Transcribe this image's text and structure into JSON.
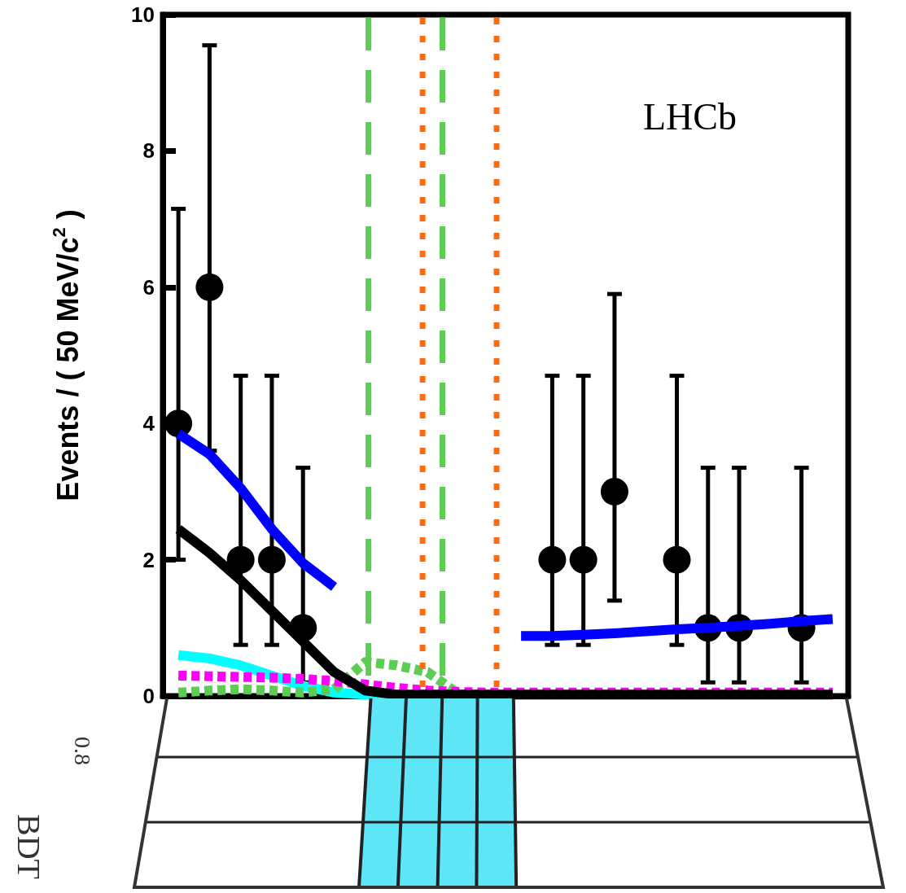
{
  "chart_data": {
    "type": "scatter",
    "ylabel": "Events / ( 50 MeV/c$^{2}$ )",
    "annotations": [
      "LHCb",
      "BDT",
      "0.8"
    ],
    "categories": [
      null,
      null,
      null,
      null,
      null,
      null,
      null,
      null,
      null,
      null,
      null,
      null,
      null,
      null,
      null,
      null,
      null,
      null,
      null,
      null,
      null,
      null
    ],
    "ylim": [
      0,
      10
    ],
    "yticks": [
      0,
      2,
      4,
      6,
      8,
      10
    ],
    "tick_labels": "y",
    "grid": false,
    "series": [
      {
        "type": "line",
        "color": "#00ffff",
        "line_style": "solid",
        "marker": "none",
        "values": [
          0.6,
          0.55,
          0.45,
          0.3,
          0.15,
          0.05,
          0.02,
          0.02,
          null,
          null,
          null,
          null,
          null,
          null,
          null,
          null,
          null,
          null,
          null,
          null,
          null,
          null
        ]
      },
      {
        "type": "line",
        "color": "#5ccc52",
        "line_style": "dashed",
        "marker": "none",
        "values": [
          0.05,
          0.08,
          0.1,
          0.08,
          0.05,
          0.1,
          0.5,
          0.45,
          0.35,
          0.03,
          null,
          null,
          null,
          null,
          null,
          null,
          null,
          null,
          null,
          null,
          null,
          null
        ]
      },
      {
        "type": "line",
        "color": "#ff00ff",
        "line_style": "dashed",
        "marker": "none",
        "values": [
          0.3,
          0.29,
          0.28,
          0.27,
          0.25,
          0.22,
          0.17,
          0.12,
          0.08,
          0.06,
          0.05,
          0.05,
          0.05,
          0.05,
          0.05,
          0.05,
          0.05,
          0.05,
          0.05,
          0.05,
          0.05,
          0.05
        ]
      },
      {
        "type": "line",
        "color": "#000000",
        "line_style": "solid",
        "marker": "none",
        "values": [
          2.45,
          2.1,
          1.7,
          1.25,
          0.8,
          0.35,
          0.08,
          0.02,
          0.02,
          0.02,
          0.02,
          0.02,
          0.02,
          0.02,
          0.02,
          0.02,
          0.02,
          0.02,
          0.02,
          0.02,
          0.02,
          0.02
        ]
      },
      {
        "type": "line",
        "color": "#0000ff",
        "line_style": "solid",
        "marker": "none",
        "values": [
          3.85,
          3.55,
          3.05,
          2.45,
          1.95,
          1.6,
          null,
          null,
          null,
          null,
          null,
          0.88,
          0.88,
          0.9,
          0.92,
          0.95,
          0.98,
          1.0,
          1.03,
          1.06,
          1.1,
          1.13
        ]
      },
      {
        "type": "scatter",
        "color": "#000000",
        "marker": "circle",
        "values": [
          4,
          6,
          2,
          2,
          1,
          null,
          null,
          null,
          null,
          null,
          null,
          null,
          2,
          2,
          3,
          null,
          2,
          1,
          1,
          null,
          1,
          null
        ],
        "errors": [
          [
            2.0,
            7.15
          ],
          [
            3.6,
            9.55
          ],
          [
            0.75,
            4.7
          ],
          [
            0.75,
            4.7
          ],
          [
            0.2,
            3.35
          ],
          null,
          null,
          null,
          null,
          null,
          null,
          null,
          [
            0.75,
            4.7
          ],
          [
            0.75,
            4.7
          ],
          [
            1.4,
            5.9
          ],
          null,
          [
            0.75,
            4.7
          ],
          [
            0.2,
            3.35
          ],
          [
            0.2,
            3.35
          ],
          null,
          [
            0.2,
            3.35
          ],
          null
        ]
      }
    ]
  }
}
